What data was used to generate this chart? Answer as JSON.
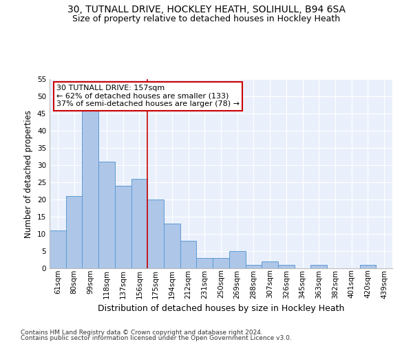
{
  "title1": "30, TUTNALL DRIVE, HOCKLEY HEATH, SOLIHULL, B94 6SA",
  "title2": "Size of property relative to detached houses in Hockley Heath",
  "xlabel": "Distribution of detached houses by size in Hockley Heath",
  "ylabel": "Number of detached properties",
  "categories": [
    "61sqm",
    "80sqm",
    "99sqm",
    "118sqm",
    "137sqm",
    "156sqm",
    "175sqm",
    "194sqm",
    "212sqm",
    "231sqm",
    "250sqm",
    "269sqm",
    "288sqm",
    "307sqm",
    "326sqm",
    "345sqm",
    "363sqm",
    "382sqm",
    "401sqm",
    "420sqm",
    "439sqm"
  ],
  "values": [
    11,
    21,
    46,
    31,
    24,
    26,
    20,
    13,
    8,
    3,
    3,
    5,
    1,
    2,
    1,
    0,
    1,
    0,
    0,
    1,
    0
  ],
  "bar_color": "#aec6e8",
  "bar_edge_color": "#5b9bd5",
  "vline_x": 5.5,
  "vline_color": "#cc0000",
  "annotation_line1": "30 TUTNALL DRIVE: 157sqm",
  "annotation_line2": "← 62% of detached houses are smaller (133)",
  "annotation_line3": "37% of semi-detached houses are larger (78) →",
  "annotation_box_color": "#ffffff",
  "annotation_box_edge": "#cc0000",
  "ylim": [
    0,
    55
  ],
  "yticks": [
    0,
    5,
    10,
    15,
    20,
    25,
    30,
    35,
    40,
    45,
    50,
    55
  ],
  "footnote1": "Contains HM Land Registry data © Crown copyright and database right 2024.",
  "footnote2": "Contains public sector information licensed under the Open Government Licence v3.0.",
  "background_color": "#eaf0fb",
  "grid_color": "#ffffff",
  "title1_fontsize": 10,
  "title2_fontsize": 9,
  "xlabel_fontsize": 9,
  "ylabel_fontsize": 8.5,
  "tick_fontsize": 7.5,
  "annotation_fontsize": 8,
  "footnote_fontsize": 6.5
}
